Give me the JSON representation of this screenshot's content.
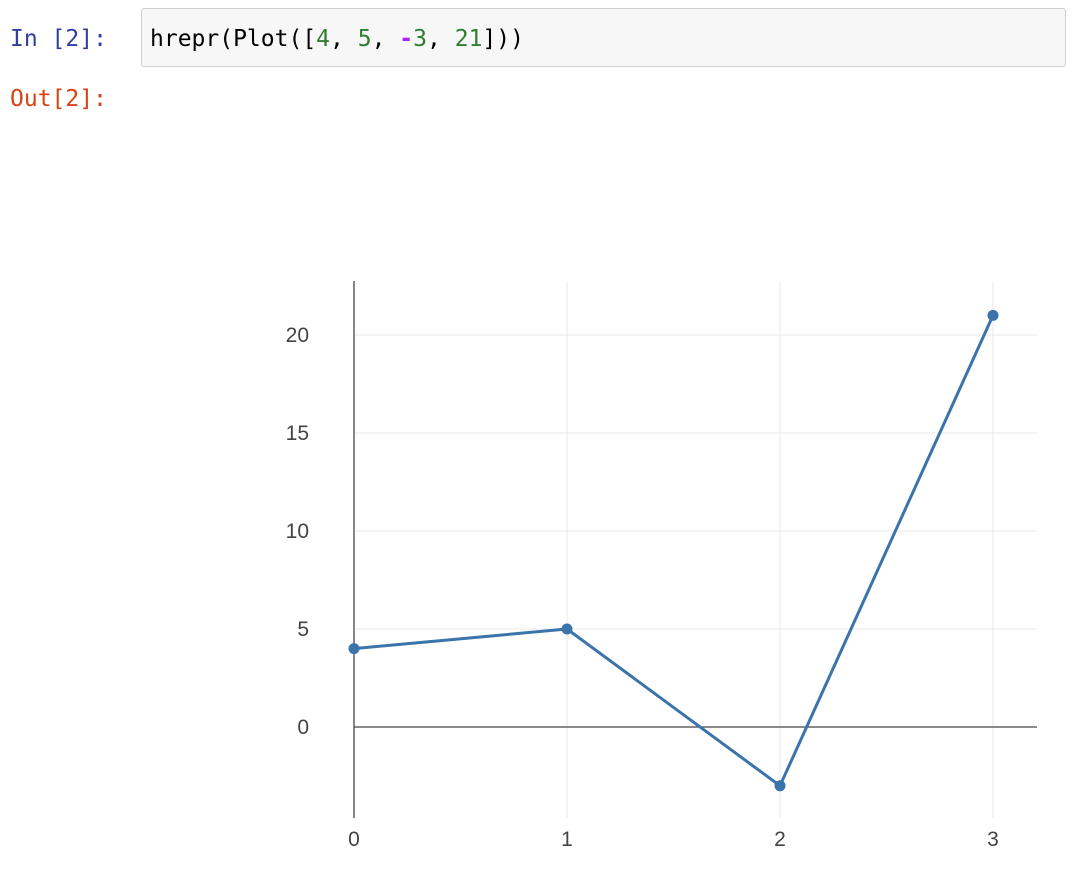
{
  "cell": {
    "input_prompt": "In [2]:",
    "output_prompt": "Out[2]:",
    "code_tokens": [
      {
        "text": "hrepr(Plot([",
        "type": "plain"
      },
      {
        "text": "4",
        "type": "num"
      },
      {
        "text": ", ",
        "type": "plain"
      },
      {
        "text": "5",
        "type": "num"
      },
      {
        "text": ", ",
        "type": "plain"
      },
      {
        "text": "-",
        "type": "op"
      },
      {
        "text": "3",
        "type": "num"
      },
      {
        "text": ", ",
        "type": "plain"
      },
      {
        "text": "21",
        "type": "num"
      },
      {
        "text": "]))",
        "type": "plain"
      }
    ]
  },
  "colors": {
    "line": "#3a74ab",
    "grid": "#e8e8e8",
    "axis": "#444444"
  },
  "chart_data": {
    "type": "line",
    "title": "",
    "xlabel": "",
    "ylabel": "",
    "x": [
      0,
      1,
      2,
      3
    ],
    "values": [
      4,
      5,
      -3,
      21
    ],
    "xticks": [
      "0",
      "1",
      "2",
      "3"
    ],
    "yticks": [
      "0",
      "5",
      "10",
      "15",
      "20"
    ],
    "ytick_values": [
      0,
      5,
      10,
      15,
      20
    ],
    "xlim": [
      0,
      3.2
    ],
    "ylim": [
      -4.7,
      22.3
    ],
    "grid": true,
    "markers": true
  }
}
